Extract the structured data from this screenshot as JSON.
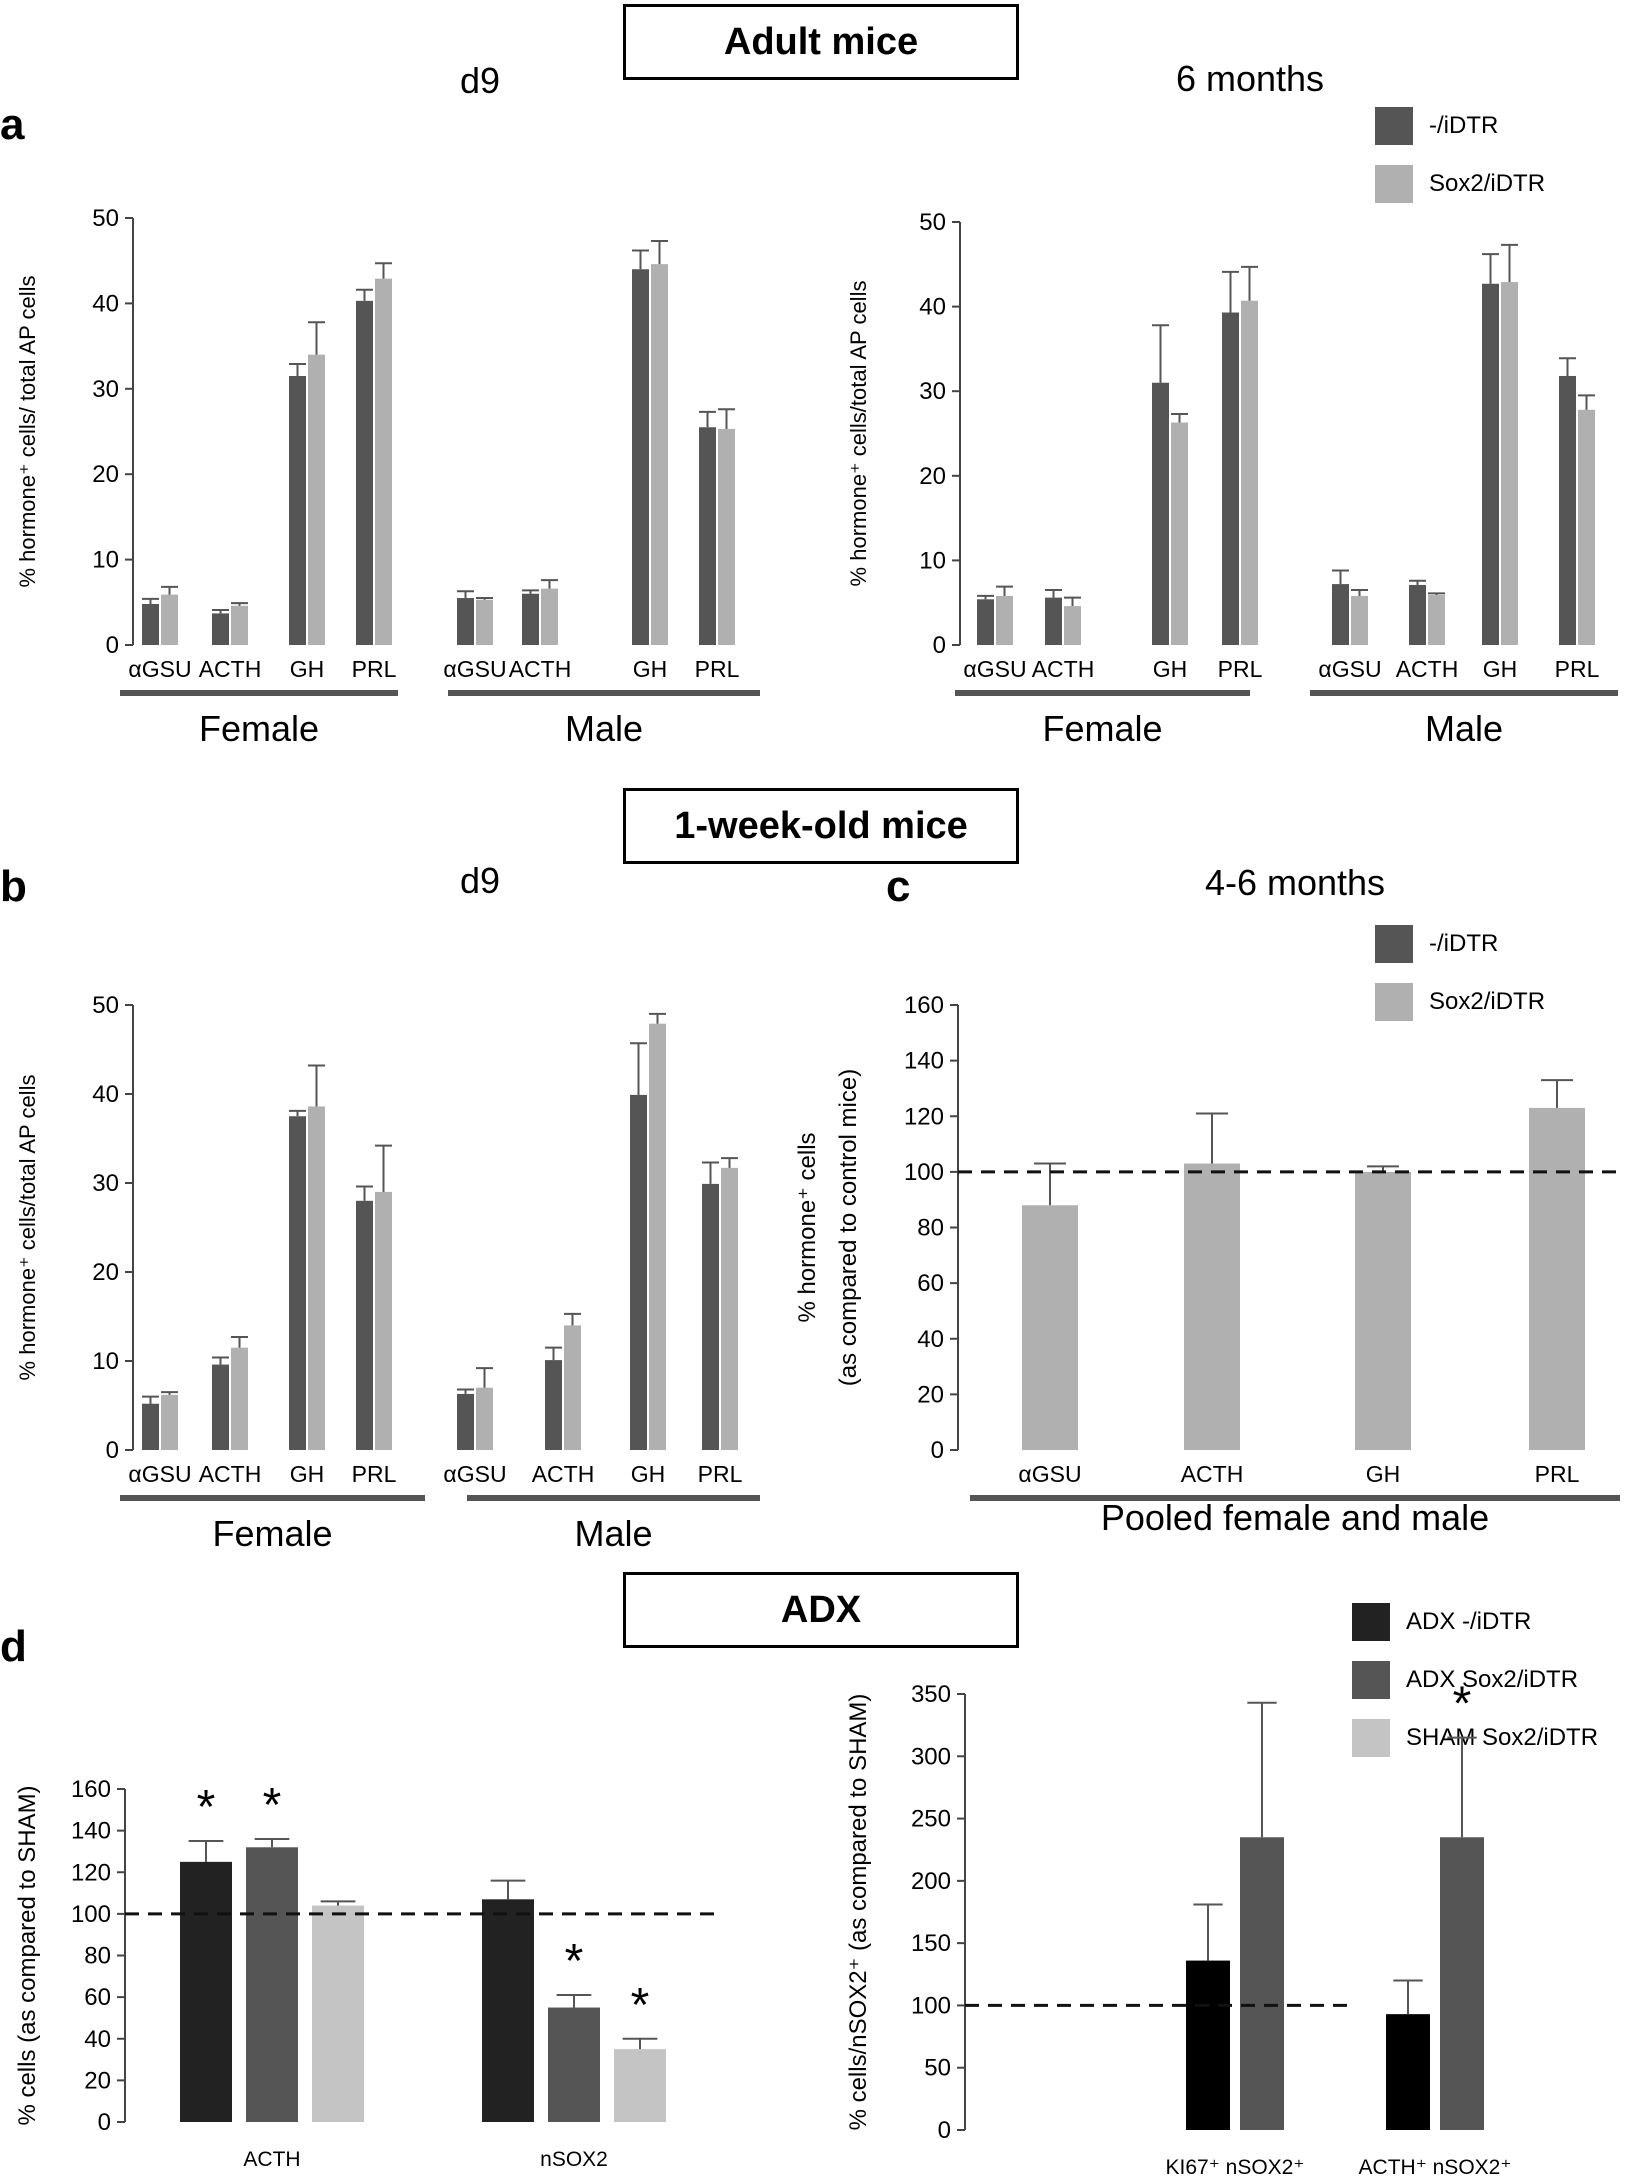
{
  "headers": {
    "adult": "Adult mice",
    "week": "1-week-old mice",
    "adx": "ADX"
  },
  "panel_letters": {
    "a": "a",
    "b": "b",
    "c": "c",
    "d": "d"
  },
  "subtitles": {
    "a_left": "d9",
    "a_right": "6 months",
    "b": "d9",
    "c": "4-6 months"
  },
  "legends": {
    "ac": [
      {
        "label": "-/iDTR",
        "color": "#555555"
      },
      {
        "label": "Sox2/iDTR",
        "color": "#b0b0b0"
      }
    ],
    "d": [
      {
        "label": "ADX -/iDTR",
        "color": "#222222"
      },
      {
        "label": "ADX Sox2/iDTR",
        "color": "#555555"
      },
      {
        "label": "SHAM Sox2/iDTR",
        "color": "#c4c4c4"
      }
    ]
  },
  "chart_data": [
    {
      "id": "a_left",
      "type": "bar",
      "ylabel": "% hormone⁺ cells/ total AP cells",
      "ylim": [
        0,
        50
      ],
      "yticks": [
        0,
        10,
        20,
        30,
        40,
        50
      ],
      "categories": [
        "αGSU",
        "ACTH",
        "GH",
        "PRL",
        "αGSU",
        "ACTH",
        "GH",
        "PRL"
      ],
      "groups": [
        "Female",
        "Male"
      ],
      "series": [
        {
          "name": "-/iDTR",
          "values": [
            4.8,
            3.7,
            31.5,
            40.3,
            5.5,
            6.0,
            44.0,
            25.5
          ],
          "errors": [
            0.6,
            0.4,
            1.4,
            1.3,
            0.8,
            0.4,
            2.2,
            1.8
          ]
        },
        {
          "name": "Sox2/iDTR",
          "values": [
            5.9,
            4.6,
            34.0,
            42.9,
            5.3,
            6.6,
            44.6,
            25.3
          ],
          "errors": [
            0.9,
            0.3,
            3.8,
            1.8,
            0.2,
            1.0,
            2.7,
            2.3
          ]
        }
      ]
    },
    {
      "id": "a_right",
      "type": "bar",
      "ylabel": "% hormone⁺ cells/total AP cells",
      "ylim": [
        0,
        50
      ],
      "yticks": [
        0,
        10,
        20,
        30,
        40,
        50
      ],
      "categories": [
        "αGSU",
        "ACTH",
        "GH",
        "PRL",
        "αGSU",
        "ACTH",
        "GH",
        "PRL"
      ],
      "groups": [
        "Female",
        "Male"
      ],
      "series": [
        {
          "name": "-/iDTR",
          "values": [
            5.4,
            5.6,
            31.0,
            39.3,
            7.2,
            7.1,
            42.7,
            31.8
          ],
          "errors": [
            0.4,
            0.9,
            6.8,
            4.8,
            1.6,
            0.5,
            3.5,
            2.1
          ]
        },
        {
          "name": "Sox2/iDTR",
          "values": [
            5.8,
            4.6,
            26.3,
            40.7,
            5.8,
            5.9,
            42.9,
            27.8
          ],
          "errors": [
            1.1,
            1.0,
            1.0,
            4.0,
            0.7,
            0.2,
            4.4,
            1.7
          ]
        }
      ]
    },
    {
      "id": "b",
      "type": "bar",
      "ylabel": "% hormone⁺ cells/total AP cells",
      "ylim": [
        0,
        50
      ],
      "yticks": [
        0,
        10,
        20,
        30,
        40,
        50
      ],
      "categories": [
        "αGSU",
        "ACTH",
        "GH",
        "PRL",
        "αGSU",
        "ACTH",
        "GH",
        "PRL"
      ],
      "groups": [
        "Female",
        "Male"
      ],
      "series": [
        {
          "name": "-/iDTR",
          "values": [
            5.2,
            9.6,
            37.5,
            28.0,
            6.3,
            10.1,
            39.9,
            29.9
          ],
          "errors": [
            0.8,
            0.8,
            0.6,
            1.6,
            0.5,
            1.4,
            5.8,
            2.4
          ]
        },
        {
          "name": "Sox2/iDTR",
          "values": [
            6.2,
            11.5,
            38.6,
            29.0,
            7.0,
            14.0,
            47.9,
            31.7
          ],
          "errors": [
            0.3,
            1.2,
            4.6,
            5.2,
            2.2,
            1.3,
            1.1,
            1.1
          ]
        }
      ]
    },
    {
      "id": "c",
      "type": "bar",
      "ylabel": "% hormone⁺ cells",
      "ylabel2": "(as compared to control mice)",
      "ylim": [
        0,
        160
      ],
      "yticks": [
        0,
        20,
        40,
        60,
        80,
        100,
        120,
        140,
        160
      ],
      "categories": [
        "αGSU",
        "ACTH",
        "GH",
        "PRL"
      ],
      "xlabel": "Pooled female and male",
      "reference_line": 100,
      "series": [
        {
          "name": "Sox2/iDTR",
          "values": [
            88,
            103,
            100,
            123
          ],
          "errors": [
            15,
            18,
            2,
            10
          ]
        }
      ]
    },
    {
      "id": "d_left",
      "type": "bar",
      "ylabel": "% cells (as compared to SHAM)",
      "ylim": [
        0,
        160
      ],
      "yticks": [
        0,
        20,
        40,
        60,
        80,
        100,
        120,
        140,
        160
      ],
      "categories": [
        "ACTH",
        "nSOX2"
      ],
      "reference_line": 100,
      "series": [
        {
          "name": "ADX -/iDTR",
          "values": [
            125,
            107
          ],
          "errors": [
            10,
            9
          ],
          "significance": [
            "*",
            ""
          ]
        },
        {
          "name": "ADX Sox2/iDTR",
          "values": [
            132,
            55
          ],
          "errors": [
            4,
            6
          ],
          "significance": [
            "*",
            "*"
          ]
        },
        {
          "name": "SHAM Sox2/iDTR",
          "values": [
            104,
            35
          ],
          "errors": [
            2,
            5
          ],
          "significance": [
            "",
            "*"
          ]
        }
      ]
    },
    {
      "id": "d_right",
      "type": "bar",
      "ylabel": "% cells/nSOX2⁺ (as compared to SHAM)",
      "ylim": [
        0,
        350
      ],
      "yticks": [
        0,
        50,
        100,
        150,
        200,
        250,
        300,
        350
      ],
      "categories": [
        "KI67⁺ nSOX2⁺",
        "ACTH⁺ nSOX2⁺"
      ],
      "reference_line": 100,
      "series": [
        {
          "name": "ADX -/iDTR",
          "values": [
            136,
            93
          ],
          "errors": [
            45,
            27
          ],
          "significance": [
            "",
            ""
          ]
        },
        {
          "name": "ADX Sox2/iDTR",
          "values": [
            235,
            235
          ],
          "errors": [
            108,
            80
          ],
          "significance": [
            "",
            "*"
          ]
        }
      ]
    }
  ]
}
